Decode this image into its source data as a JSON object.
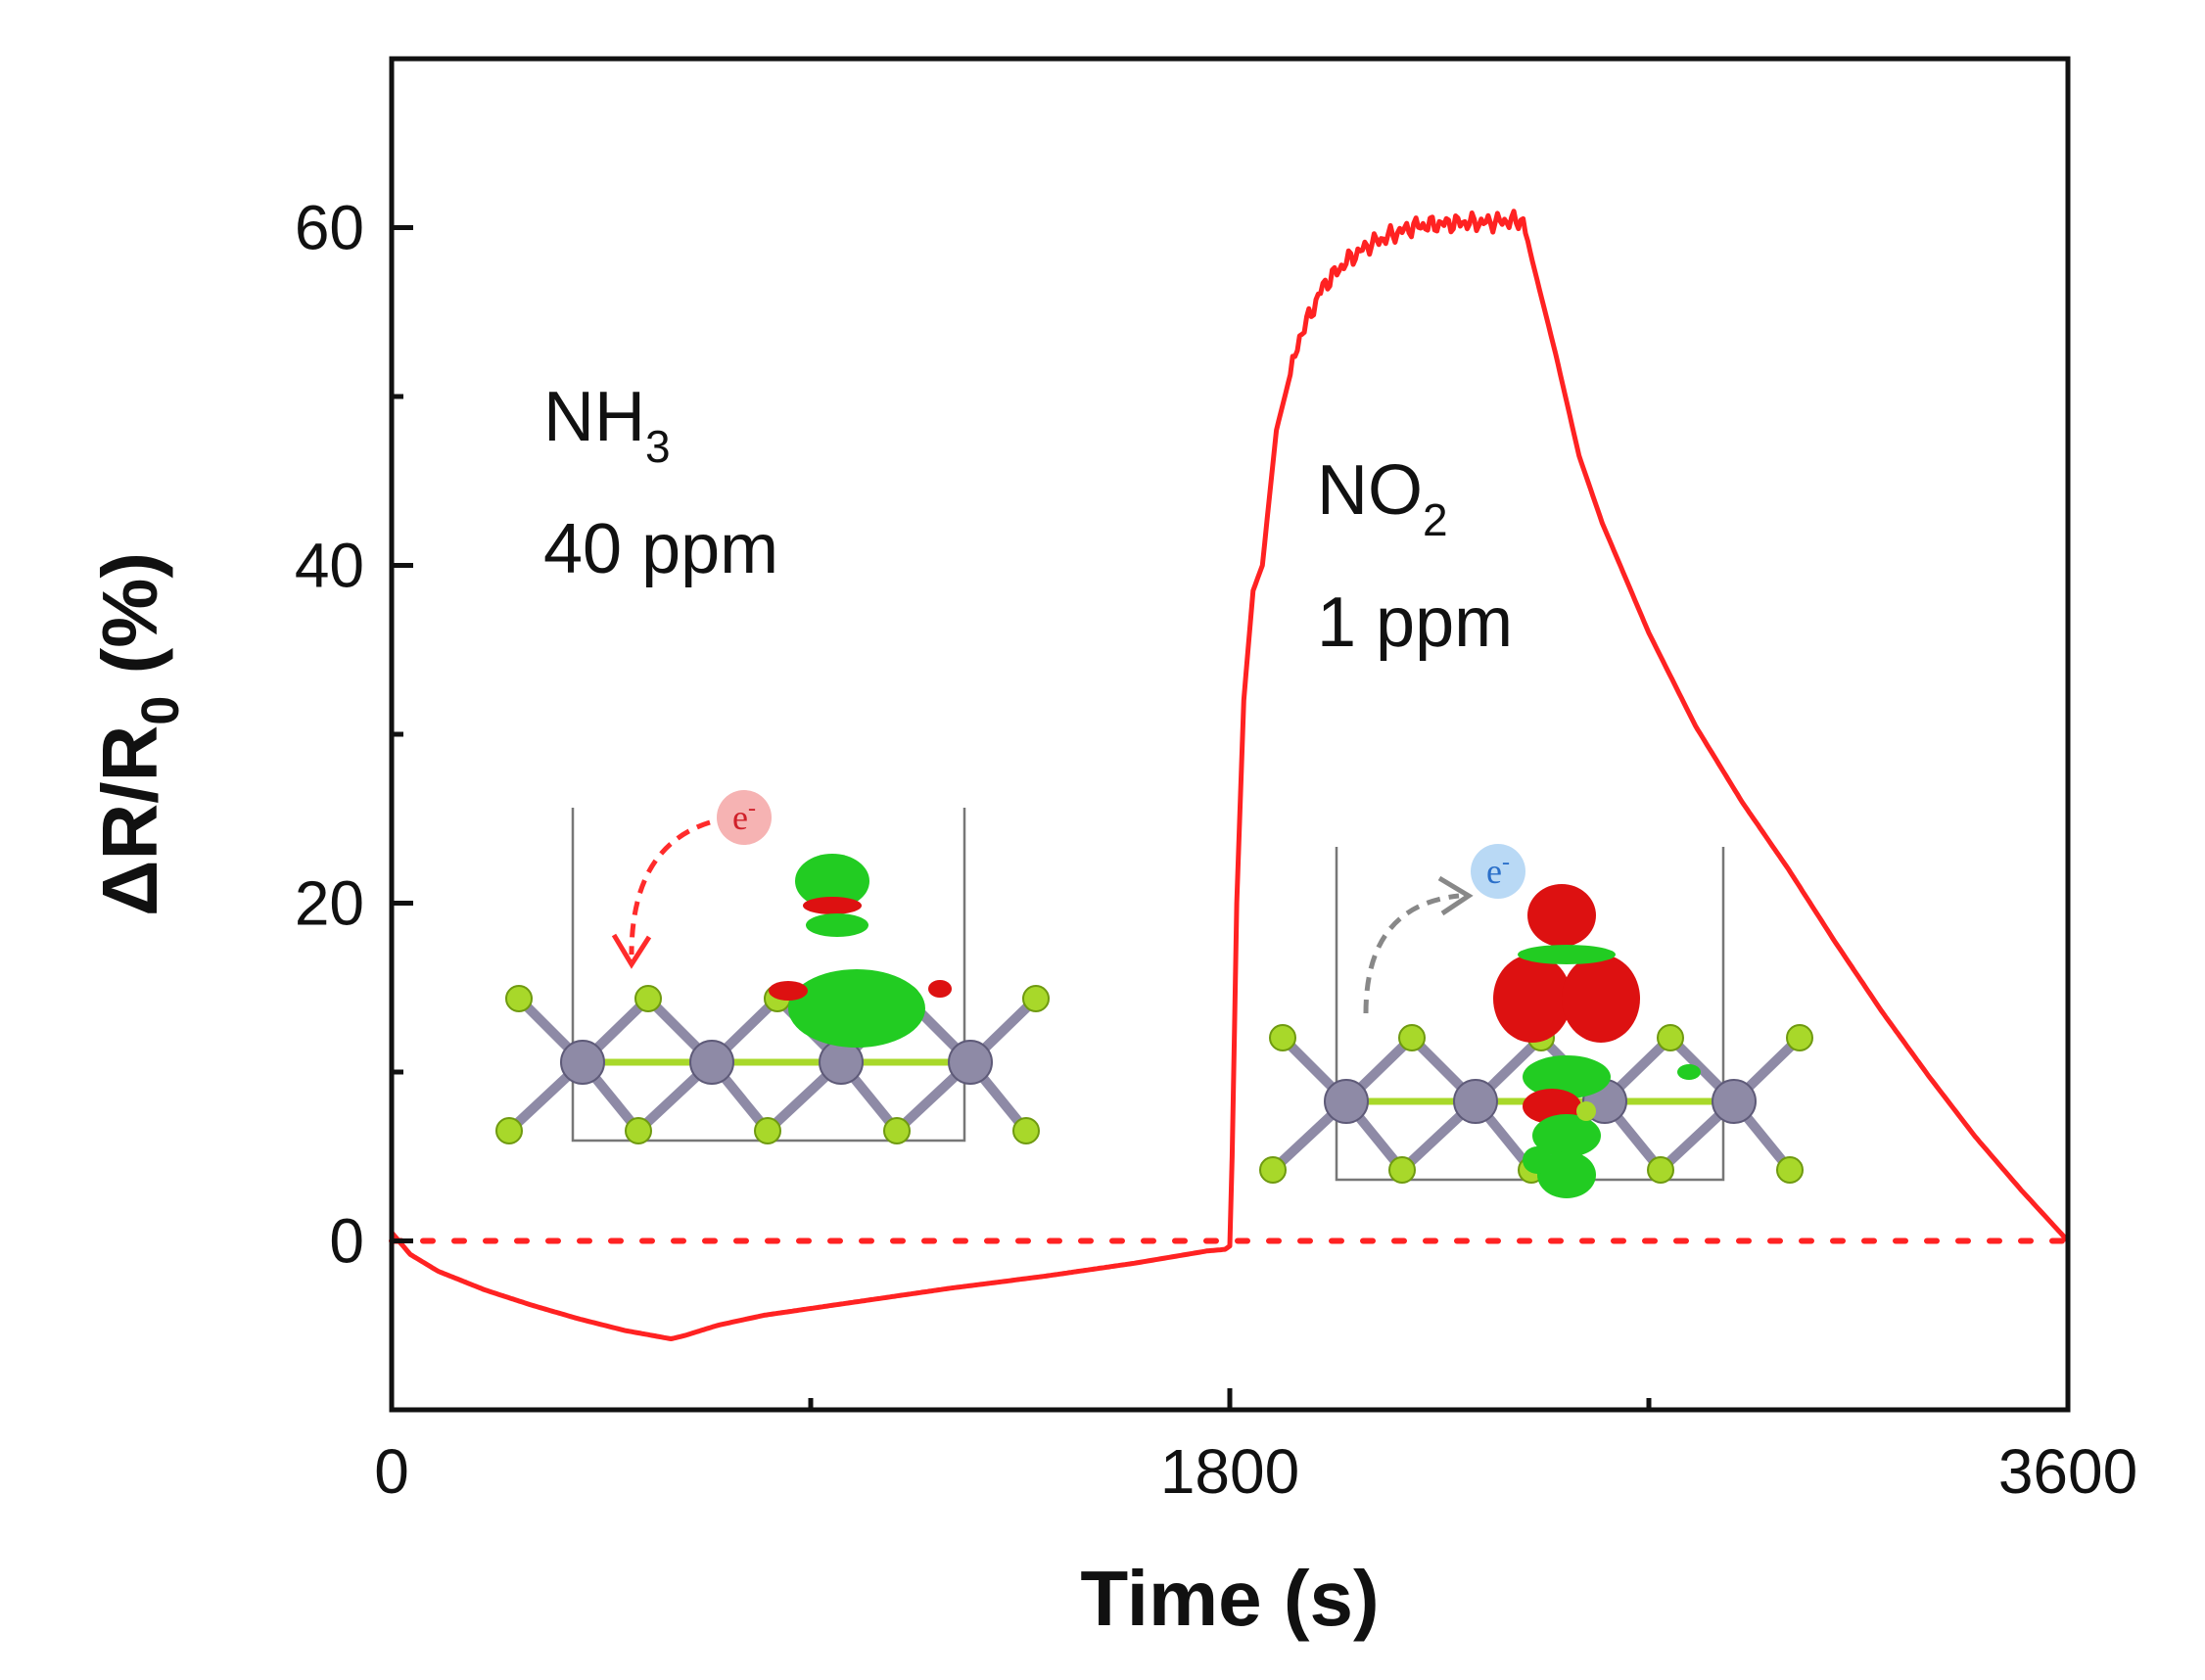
{
  "chart_data": {
    "type": "line",
    "title": "",
    "xlabel": "Time (s)",
    "ylabel_parts": {
      "main": "ΔR/R",
      "sub": "0",
      "unit": " (%)"
    },
    "xlim": [
      0,
      3600
    ],
    "ylim": [
      -10,
      70
    ],
    "xticks": [
      0,
      1800,
      3600
    ],
    "xticks_minor": [
      900,
      2700
    ],
    "yticks": [
      0,
      20,
      40,
      60
    ],
    "yticks_minor": [
      10,
      30,
      50
    ],
    "series": [
      {
        "name": "response",
        "color": "#ff2222",
        "x": [
          0,
          40,
          100,
          200,
          300,
          400,
          500,
          600,
          630,
          700,
          800,
          1000,
          1200,
          1400,
          1600,
          1750,
          1790,
          1800,
          1805,
          1815,
          1830,
          1850,
          1870,
          1900,
          1950,
          2000,
          2050,
          2100,
          2150,
          2200,
          2250,
          2300,
          2350,
          2400,
          2430,
          2450,
          2500,
          2550,
          2600,
          2700,
          2800,
          2900,
          3000,
          3100,
          3200,
          3300,
          3400,
          3500,
          3600
        ],
        "y": [
          0.5,
          -0.8,
          -1.8,
          -2.9,
          -3.8,
          -4.6,
          -5.3,
          -5.8,
          -5.6,
          -5.0,
          -4.4,
          -3.6,
          -2.8,
          -2.1,
          -1.3,
          -0.6,
          -0.5,
          -0.3,
          5,
          20,
          32,
          38.5,
          40,
          48,
          53.5,
          56.5,
          58,
          59,
          59.6,
          60.1,
          60.2,
          60.3,
          60.3,
          60.4,
          60.4,
          58,
          52.5,
          46.5,
          42.5,
          36,
          30.5,
          26,
          22,
          17.7,
          13.6,
          9.8,
          6.2,
          3,
          0
        ]
      }
    ],
    "baseline": {
      "y": 0,
      "style": "dotted",
      "color": "#ff2222"
    },
    "annotations": [
      {
        "id": "nh3",
        "gas": "NH",
        "sub": "3",
        "conc": "40 ppm"
      },
      {
        "id": "no2",
        "gas": "NO",
        "sub": "2",
        "conc": "1 ppm"
      }
    ],
    "insets": [
      {
        "id": "inset-nh3",
        "electron_label": "e",
        "electron_charge": "-",
        "arrow_color": "#ff2b2b",
        "bubble_color": "#f6b3b3"
      },
      {
        "id": "inset-no2",
        "electron_label": "e",
        "electron_charge": "-",
        "arrow_color": "#888888",
        "bubble_color": "#b9d9f5"
      }
    ],
    "colors": {
      "axis": "#111111",
      "line": "#ff2222",
      "atom_metal": "#8e8aa6",
      "atom_chalcogen": "#a8d82a",
      "charge_accum": "#22cc22",
      "charge_deplete": "#dd1111"
    }
  }
}
